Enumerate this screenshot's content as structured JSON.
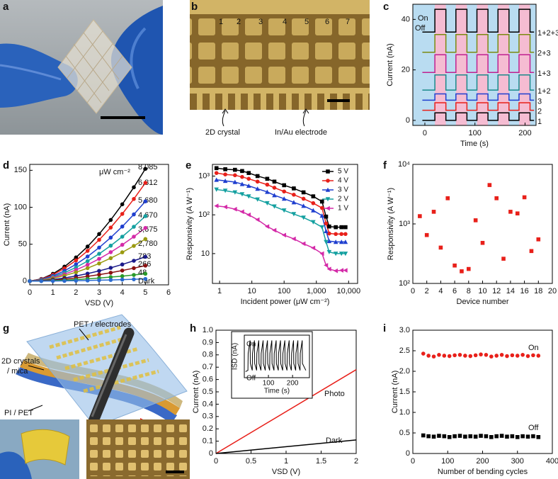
{
  "figures": {
    "a": {
      "panel_label": "a"
    },
    "b": {
      "panel_label": "b",
      "electrode_numbers": [
        "1",
        "2",
        "3",
        "4",
        "5",
        "6",
        "7"
      ],
      "annotations": [
        "2D crystal",
        "In/Au electrode"
      ]
    },
    "g": {
      "panel_label": "g",
      "annotations": [
        "PET / electrodes",
        "2D crystals",
        "/ mica",
        "PI / PET"
      ]
    }
  },
  "chart_data": [
    {
      "type": "line",
      "panel_label": "c",
      "x_label": "Time (s)",
      "y_label": "Current (nA)",
      "background_color": "#b9dcf1",
      "highlight_color": "#f5bcd2",
      "on_periods": [
        [
          20,
          42
        ],
        [
          62,
          84
        ],
        [
          104,
          126
        ],
        [
          146,
          168
        ],
        [
          188,
          210
        ]
      ],
      "annotations": [
        "On",
        "Off"
      ],
      "x": [
        -5,
        20,
        20,
        42,
        42,
        62,
        62,
        84,
        84,
        104,
        104,
        126,
        126,
        146,
        146,
        168,
        168,
        188,
        188,
        210,
        210,
        218
      ],
      "series": [
        {
          "name": "1",
          "color": "#000000",
          "values": [
            0,
            0,
            3,
            3,
            0,
            0,
            3,
            3,
            0,
            0,
            3,
            3,
            0,
            0,
            3,
            3,
            0,
            0,
            3,
            3,
            0,
            0
          ]
        },
        {
          "name": "2",
          "color": "#e8201a",
          "values": [
            4,
            4,
            7,
            7,
            4,
            4,
            7,
            7,
            4,
            4,
            7,
            7,
            4,
            4,
            7,
            7,
            4,
            4,
            7,
            7,
            4,
            4
          ]
        },
        {
          "name": "3",
          "color": "#1f3fcf",
          "values": [
            8,
            8,
            10.5,
            10.5,
            8,
            8,
            10.5,
            10.5,
            8,
            8,
            10.5,
            10.5,
            8,
            8,
            10.5,
            10.5,
            8,
            8,
            10.5,
            10.5,
            8,
            8
          ]
        },
        {
          "name": "1+2",
          "color": "#1a8a8a",
          "values": [
            12,
            12,
            18,
            18,
            12,
            12,
            18,
            18,
            12,
            12,
            18,
            18,
            12,
            12,
            18,
            18,
            12,
            12,
            18,
            18,
            12,
            12
          ]
        },
        {
          "name": "1+3",
          "color": "#c0208f",
          "values": [
            19,
            19,
            26,
            26,
            19,
            19,
            26,
            26,
            19,
            19,
            26,
            26,
            19,
            19,
            26,
            26,
            19,
            19,
            26,
            26,
            19,
            19
          ]
        },
        {
          "name": "2+3",
          "color": "#7a8a10",
          "values": [
            27,
            27,
            34,
            34,
            27,
            27,
            34,
            34,
            27,
            27,
            34,
            34,
            27,
            27,
            34,
            34,
            27,
            27,
            34,
            34,
            27,
            27
          ]
        },
        {
          "name": "1+2+3",
          "color": "#000000",
          "values": [
            35,
            35,
            44,
            44,
            35,
            35,
            44,
            44,
            35,
            35,
            44,
            44,
            35,
            35,
            44,
            44,
            35,
            35,
            44,
            44,
            35,
            35
          ]
        }
      ],
      "xlim": [
        -24,
        222
      ],
      "xticks": [
        0,
        100,
        200
      ],
      "ylim": [
        -2,
        46
      ],
      "yticks": [
        0,
        20,
        40
      ]
    },
    {
      "type": "line",
      "panel_label": "d",
      "x_label": "VSD (V)",
      "y_label": "Current (nA)",
      "markers": true,
      "unit_label": "μW cm⁻²",
      "x": [
        0,
        0.5,
        1,
        1.5,
        2,
        2.5,
        3,
        3.5,
        4,
        4.5,
        5
      ],
      "series": [
        {
          "name": "8,085",
          "color": "#000000",
          "values": [
            0,
            3,
            9.9,
            19.6,
            32.1,
            46.8,
            63.8,
            82.8,
            104,
            127,
            152
          ]
        },
        {
          "name": "6,812",
          "color": "#e8201a",
          "values": [
            0,
            2.7,
            8.6,
            17.2,
            28.1,
            41,
            55.9,
            72.5,
            91,
            111.2,
            133
          ]
        },
        {
          "name": "5,680",
          "color": "#1f3fcf",
          "values": [
            0,
            2.2,
            7,
            13.9,
            22.8,
            33.3,
            45.4,
            58.9,
            73.9,
            90.3,
            108
          ]
        },
        {
          "name": "4,670",
          "color": "#14a0a0",
          "values": [
            0,
            1.8,
            5.7,
            11.4,
            18.6,
            27.1,
            37,
            48,
            60.2,
            73.6,
            88
          ]
        },
        {
          "name": "3,675",
          "color": "#d42aa8",
          "values": [
            0,
            1.4,
            4.7,
            9.3,
            15.2,
            22.2,
            30.2,
            39.2,
            49.2,
            60.2,
            72
          ]
        },
        {
          "name": "2,780",
          "color": "#9a9a10",
          "values": [
            0,
            1.1,
            3.7,
            7.4,
            12,
            17.6,
            23.9,
            31.1,
            39,
            47.7,
            57
          ]
        },
        {
          "name": "783",
          "color": "#1a1a8a",
          "values": [
            0,
            0.7,
            2.1,
            4.3,
            7,
            10.2,
            13.9,
            18,
            22.6,
            27.6,
            33
          ]
        },
        {
          "name": "266",
          "color": "#8a1010",
          "values": [
            0,
            0.4,
            1.4,
            2.7,
            4.4,
            6.5,
            8.8,
            11.4,
            14.4,
            17.6,
            21
          ]
        },
        {
          "name": "48",
          "color": "#2a9a2a",
          "values": [
            0,
            0.2,
            0.7,
            1.3,
            2.1,
            3.1,
            4.2,
            5.5,
            6.8,
            8.4,
            10
          ]
        },
        {
          "name": "Dark",
          "color": "#2a6acf",
          "values": [
            0,
            0.1,
            0.2,
            0.4,
            0.6,
            0.9,
            1.3,
            1.6,
            2.1,
            2.5,
            3
          ]
        }
      ],
      "xlim": [
        0,
        6
      ],
      "xticks": [
        0,
        1,
        2,
        3,
        4,
        5,
        6
      ],
      "ylim": [
        -5,
        158
      ],
      "yticks": [
        0,
        50,
        100,
        150
      ]
    },
    {
      "type": "line",
      "panel_label": "e",
      "x_label": "Incident power (μW cm⁻²)",
      "y_label": "Responsivity (A W⁻¹)",
      "log_x": true,
      "log_y": true,
      "markers": true,
      "legend": "upper right",
      "x": [
        0.8,
        1.5,
        3,
        5,
        8,
        15,
        30,
        50,
        100,
        200,
        400,
        800,
        1500,
        2000,
        2500,
        4000,
        6000,
        8000
      ],
      "series": [
        {
          "name": "5 V",
          "color": "#000000",
          "marker": "square",
          "values": [
            1600,
            1500,
            1450,
            1350,
            1200,
            1000,
            850,
            720,
            580,
            480,
            380,
            300,
            220,
            90,
            50,
            48,
            48,
            48
          ]
        },
        {
          "name": "4 V",
          "color": "#e8201a",
          "marker": "circle",
          "values": [
            1200,
            1100,
            1050,
            950,
            850,
            720,
            600,
            500,
            400,
            330,
            260,
            200,
            150,
            60,
            33,
            32,
            32,
            32
          ]
        },
        {
          "name": "3 V",
          "color": "#1f3fcf",
          "marker": "triangle-up",
          "values": [
            800,
            750,
            700,
            620,
            560,
            470,
            390,
            320,
            260,
            210,
            170,
            130,
            95,
            38,
            21,
            20,
            20,
            20
          ]
        },
        {
          "name": "2 V",
          "color": "#14a0a0",
          "marker": "triangle-down",
          "values": [
            450,
            420,
            380,
            340,
            300,
            250,
            200,
            165,
            130,
            105,
            85,
            65,
            48,
            20,
            11,
            10,
            10,
            10
          ]
        },
        {
          "name": "1 V",
          "color": "#d42aa8",
          "marker": "triangle-left",
          "values": [
            170,
            160,
            140,
            120,
            100,
            75,
            50,
            40,
            30,
            24,
            18,
            14,
            10,
            5,
            4,
            3.6,
            3.7,
            3.7
          ]
        }
      ],
      "xlim": [
        0.6,
        19000
      ],
      "xticks": [
        1,
        10,
        100,
        {
          "value": 1000,
          "label": "1,000"
        },
        {
          "value": 10000,
          "label": "10,000"
        }
      ],
      "ylim": [
        1.7,
        2000
      ],
      "yticks": [
        10,
        {
          "value": 100,
          "label": "10²"
        },
        {
          "value": 1000,
          "label": "10³"
        }
      ]
    },
    {
      "type": "scatter",
      "panel_label": "f",
      "x_label": "Device number",
      "y_label": "Responsivity (A W⁻¹)",
      "log_y": true,
      "series": [
        {
          "color": "#e8201a",
          "marker": "square",
          "x": [
            1,
            2,
            3,
            4,
            5,
            6,
            7,
            8,
            9,
            10,
            11,
            12,
            13,
            14,
            15,
            16,
            17,
            18
          ],
          "values": [
            1350,
            650,
            1600,
            400,
            2700,
            200,
            160,
            175,
            1150,
            480,
            4500,
            2700,
            260,
            1600,
            1500,
            2800,
            350,
            550
          ]
        }
      ],
      "xlim": [
        0,
        20
      ],
      "xticks": [
        0,
        2,
        4,
        6,
        8,
        10,
        12,
        14,
        16,
        18,
        20
      ],
      "ylim": [
        100,
        10000
      ],
      "yticks": [
        {
          "value": 100,
          "label": "10²"
        },
        {
          "value": 1000,
          "label": "10³"
        },
        {
          "value": 10000,
          "label": "10⁴"
        }
      ]
    },
    {
      "type": "line",
      "panel_label": "h",
      "x_label": "VSD (V)",
      "y_label": "Current (nA)",
      "x": [
        0,
        2
      ],
      "series": [
        {
          "name": "Photo",
          "color": "#e8201a",
          "values": [
            0,
            0.68
          ]
        },
        {
          "name": "Dark",
          "color": "#000000",
          "values": [
            0,
            0.11
          ]
        }
      ],
      "xlim": [
        0,
        2
      ],
      "xticks": [
        0,
        0.5,
        1,
        1.5,
        2
      ],
      "ylim": [
        0,
        1
      ],
      "yticks": [
        0,
        0.1,
        0.2,
        0.3,
        0.4,
        0.5,
        0.6,
        0.7,
        0.8,
        0.9,
        {
          "value": 1,
          "label": "1.0"
        }
      ]
    },
    {
      "type": "line",
      "inset": true,
      "x_label": "Time (s)",
      "y_label": "ISD (nA)",
      "annotations": [
        "On",
        "Off"
      ],
      "x": [
        5,
        15,
        16,
        24,
        25,
        33,
        34,
        42,
        43,
        51,
        52,
        60,
        61,
        69,
        70,
        78,
        79,
        87,
        88,
        96,
        97,
        105,
        106,
        114,
        115,
        123,
        124,
        132,
        133,
        141,
        142,
        150,
        151,
        159,
        160,
        168,
        169,
        177,
        178,
        186,
        187,
        195,
        196,
        204,
        205,
        213,
        214,
        222,
        223,
        231,
        232,
        240,
        241,
        255
      ],
      "series": [
        {
          "color": "#000000",
          "values": [
            0.15,
            0.18,
            0.6,
            0.92,
            0.35,
            0.18,
            0.6,
            0.92,
            0.35,
            0.18,
            0.6,
            0.92,
            0.35,
            0.18,
            0.6,
            0.92,
            0.35,
            0.18,
            0.6,
            0.92,
            0.35,
            0.18,
            0.6,
            0.92,
            0.35,
            0.18,
            0.6,
            0.92,
            0.35,
            0.18,
            0.6,
            0.92,
            0.35,
            0.18,
            0.6,
            0.92,
            0.35,
            0.18,
            0.6,
            0.92,
            0.35,
            0.18,
            0.6,
            0.92,
            0.35,
            0.18,
            0.6,
            0.92,
            0.35,
            0.18,
            0.6,
            0.92,
            0.35,
            0.18
          ]
        }
      ],
      "xlim": [
        0,
        270
      ],
      "xticks": [
        100,
        200
      ],
      "ylim": [
        0,
        1.05
      ]
    },
    {
      "type": "scatter",
      "panel_label": "i",
      "x_label": "Number of bending cycles",
      "y_label": "Current (nA)",
      "x": [
        30,
        45,
        60,
        75,
        90,
        105,
        120,
        135,
        150,
        165,
        180,
        195,
        210,
        225,
        240,
        255,
        270,
        285,
        300,
        315,
        330,
        345,
        360
      ],
      "series": [
        {
          "name": "On",
          "color": "#e8201a",
          "marker": "circle",
          "values": [
            2.43,
            2.38,
            2.36,
            2.4,
            2.38,
            2.37,
            2.39,
            2.4,
            2.38,
            2.37,
            2.39,
            2.41,
            2.4,
            2.36,
            2.38,
            2.4,
            2.37,
            2.39,
            2.38,
            2.4,
            2.37,
            2.39,
            2.38
          ]
        },
        {
          "name": "Off",
          "color": "#000000",
          "marker": "square",
          "values": [
            0.44,
            0.42,
            0.41,
            0.43,
            0.42,
            0.4,
            0.42,
            0.43,
            0.41,
            0.42,
            0.41,
            0.43,
            0.42,
            0.4,
            0.42,
            0.43,
            0.41,
            0.42,
            0.4,
            0.42,
            0.41,
            0.42,
            0.4
          ]
        }
      ],
      "xlim": [
        0,
        400
      ],
      "xticks": [
        0,
        100,
        200,
        300,
        400
      ],
      "ylim": [
        0,
        3
      ],
      "yticks": [
        0,
        0.5,
        {
          "value": 1,
          "label": "1.0"
        },
        1.5,
        {
          "value": 2,
          "label": "2.0"
        },
        2.5,
        {
          "value": 3,
          "label": "3.0"
        }
      ]
    }
  ]
}
